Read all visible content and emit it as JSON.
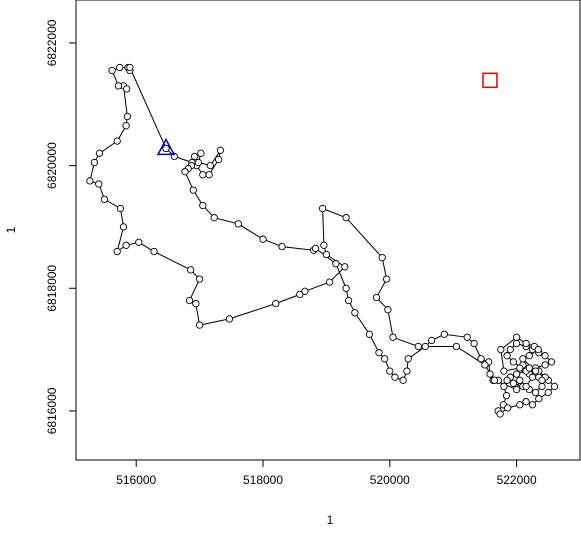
{
  "chart_data": {
    "type": "scatter",
    "title": "",
    "xlabel": "1",
    "ylabel": "1",
    "xlim": [
      515050,
      523000
    ],
    "ylim": [
      6815200,
      6822700
    ],
    "xticks": [
      {
        "value": 516000,
        "label": "516000"
      },
      {
        "value": 518000,
        "label": "518000"
      },
      {
        "value": 520000,
        "label": "520000"
      },
      {
        "value": 522000,
        "label": "522000"
      }
    ],
    "yticks": [
      {
        "value": 6816000,
        "label": "6816000"
      },
      {
        "value": 6818000,
        "label": "6818000"
      },
      {
        "value": 6820000,
        "label": "6820000"
      },
      {
        "value": 6822000,
        "label": "6822000"
      }
    ],
    "grid": false,
    "legend": "none",
    "colors": {
      "line": "#000000",
      "point_fill": "#ffffff",
      "point_stroke": "#000000",
      "start_marker": "#0000cc",
      "end_marker": "#ee0000"
    },
    "start_marker": {
      "shape": "triangle",
      "x": 516470,
      "y": 6820280
    },
    "end_marker": {
      "shape": "square",
      "x": 521580,
      "y": 6821390
    },
    "path": {
      "x": [
        516470,
        516600,
        516880,
        516950,
        517050,
        517150,
        517300,
        517330,
        517170,
        516980,
        517020,
        516920,
        516870,
        516820,
        516770,
        516900,
        517050,
        517230,
        517610,
        518000,
        518300,
        518800,
        518830,
        519150,
        519310,
        519350,
        519450,
        519680,
        519830,
        519920,
        520000,
        520080,
        520210,
        520270,
        520290,
        520560,
        520660,
        520860,
        521220,
        521330,
        521440,
        521560,
        521580,
        521630,
        521710,
        521800,
        521840,
        521790,
        521710,
        521740,
        521860,
        522050,
        522150,
        522250,
        522350,
        522500,
        522600,
        522500,
        522350,
        522200,
        522080,
        521950,
        521850,
        521900,
        522000,
        522150,
        522250,
        522350,
        522450,
        522550,
        522450,
        522300,
        522150,
        522000,
        521900,
        521850,
        521950,
        522100,
        522200,
        522300,
        522400,
        522450,
        522350,
        522200,
        522100,
        522050,
        521800,
        521750,
        522000,
        522150,
        522280,
        522340,
        522200,
        522100,
        522300,
        522400,
        522250,
        522150,
        522050,
        522000,
        521650,
        521500,
        521050,
        520450,
        520050,
        519970,
        519790,
        519950,
        519880,
        519310,
        518940,
        518960,
        519000,
        519290,
        519050,
        518660,
        518580,
        518200,
        517470,
        517000,
        516940,
        516840,
        517000,
        516860,
        516280,
        516040,
        515840,
        515700,
        515800,
        515750,
        515500,
        515410,
        515270,
        515340,
        515420,
        515700,
        515840,
        515860,
        515800,
        515850,
        515720,
        515620,
        515740,
        515870,
        515900,
        515900,
        516470
      ],
      "y": [
        6820280,
        6820150,
        6820050,
        6820000,
        6819850,
        6819850,
        6820100,
        6820250,
        6820000,
        6820050,
        6820200,
        6820150,
        6820000,
        6819950,
        6819900,
        6819600,
        6819350,
        6819150,
        6819050,
        6818800,
        6818680,
        6818620,
        6818650,
        6818400,
        6818000,
        6817800,
        6817600,
        6817250,
        6816950,
        6816850,
        6816650,
        6816550,
        6816500,
        6816650,
        6816850,
        6817050,
        6817150,
        6817250,
        6817200,
        6817100,
        6816850,
        6816800,
        6816600,
        6816500,
        6816500,
        6816400,
        6816250,
        6816100,
        6816000,
        6815950,
        6816050,
        6816100,
        6816150,
        6816100,
        6816200,
        6816300,
        6816400,
        6816500,
        6816550,
        6816600,
        6816700,
        6816800,
        6816900,
        6817000,
        6817100,
        6817050,
        6817000,
        6816950,
        6816900,
        6816800,
        6816750,
        6816700,
        6816650,
        6816600,
        6816550,
        6816500,
        6816450,
        6816400,
        6816350,
        6816300,
        6816400,
        6816550,
        6816650,
        6816700,
        6816750,
        6816700,
        6816650,
        6817000,
        6817200,
        6817100,
        6817050,
        6817000,
        6816900,
        6816850,
        6816650,
        6816500,
        6816550,
        6816400,
        6816500,
        6816350,
        6816500,
        6816750,
        6817050,
        6817050,
        6817200,
        6817650,
        6817850,
        6818150,
        6818500,
        6819150,
        6819300,
        6818700,
        6818550,
        6818350,
        6818100,
        6817950,
        6817900,
        6817750,
        6817500,
        6817400,
        6817750,
        6817800,
        6818150,
        6818300,
        6818600,
        6818750,
        6818700,
        6818600,
        6819000,
        6819300,
        6819450,
        6819700,
        6819750,
        6820050,
        6820200,
        6820400,
        6820650,
        6820800,
        6821300,
        6821250,
        6821300,
        6821550,
        6821600,
        6821600,
        6821550,
        6821600,
        6820280
      ]
    }
  }
}
